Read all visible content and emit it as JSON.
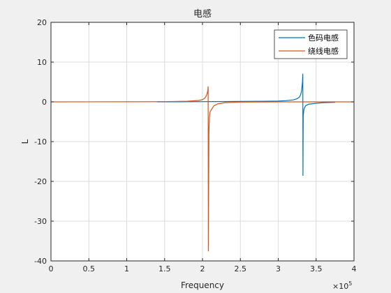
{
  "chart_data": {
    "type": "line",
    "title": "电感",
    "xlabel": "Frequency",
    "ylabel": "L",
    "x_exponent": "×10^5",
    "xlim": [
      0,
      4
    ],
    "ylim": [
      -40,
      20
    ],
    "x_ticks": [
      0,
      0.5,
      1,
      1.5,
      2,
      2.5,
      3,
      3.5,
      4
    ],
    "y_ticks": [
      20,
      10,
      0,
      -10,
      -20,
      -30,
      -40
    ],
    "x_tick_labels": [
      "0",
      "0.5",
      "1",
      "1.5",
      "2",
      "2.5",
      "3",
      "3.5",
      "4"
    ],
    "y_tick_labels": [
      "20",
      "10",
      "0",
      "-10",
      "-20",
      "-30",
      "-40"
    ],
    "exp_base": "×10",
    "exp_power": "5",
    "grid": true,
    "legend_position": "top-right",
    "series": [
      {
        "name": "色码电感",
        "color": "#0072bd",
        "x": [
          1.4,
          2.0,
          2.5,
          3.0,
          3.1,
          3.2,
          3.25,
          3.28,
          3.3,
          3.31,
          3.32,
          3.324,
          3.326,
          3.33,
          3.34,
          3.36,
          3.4,
          3.5,
          3.6,
          3.75
        ],
        "y": [
          0.0,
          0.05,
          0.1,
          0.2,
          0.3,
          0.5,
          0.8,
          1.2,
          2.0,
          3.0,
          5.0,
          7.0,
          -18.5,
          -3.5,
          -1.8,
          -1.0,
          -0.6,
          -0.35,
          -0.2,
          -0.1
        ]
      },
      {
        "name": "绕线电感",
        "color": "#d95319",
        "x": [
          0.0,
          1.0,
          1.5,
          1.8,
          1.95,
          2.0,
          2.03,
          2.05,
          2.06,
          2.07,
          2.075,
          2.077,
          2.08,
          2.085,
          2.09,
          2.1,
          2.15,
          2.2,
          2.3,
          2.5,
          3.0,
          4.0
        ],
        "y": [
          0.0,
          0.02,
          0.05,
          0.15,
          0.35,
          0.55,
          0.9,
          1.5,
          2.0,
          2.8,
          3.8,
          -37.5,
          -29.0,
          -8.0,
          -4.0,
          -2.5,
          -1.0,
          -0.5,
          -0.2,
          -0.05,
          0.0,
          0.0
        ]
      }
    ]
  }
}
